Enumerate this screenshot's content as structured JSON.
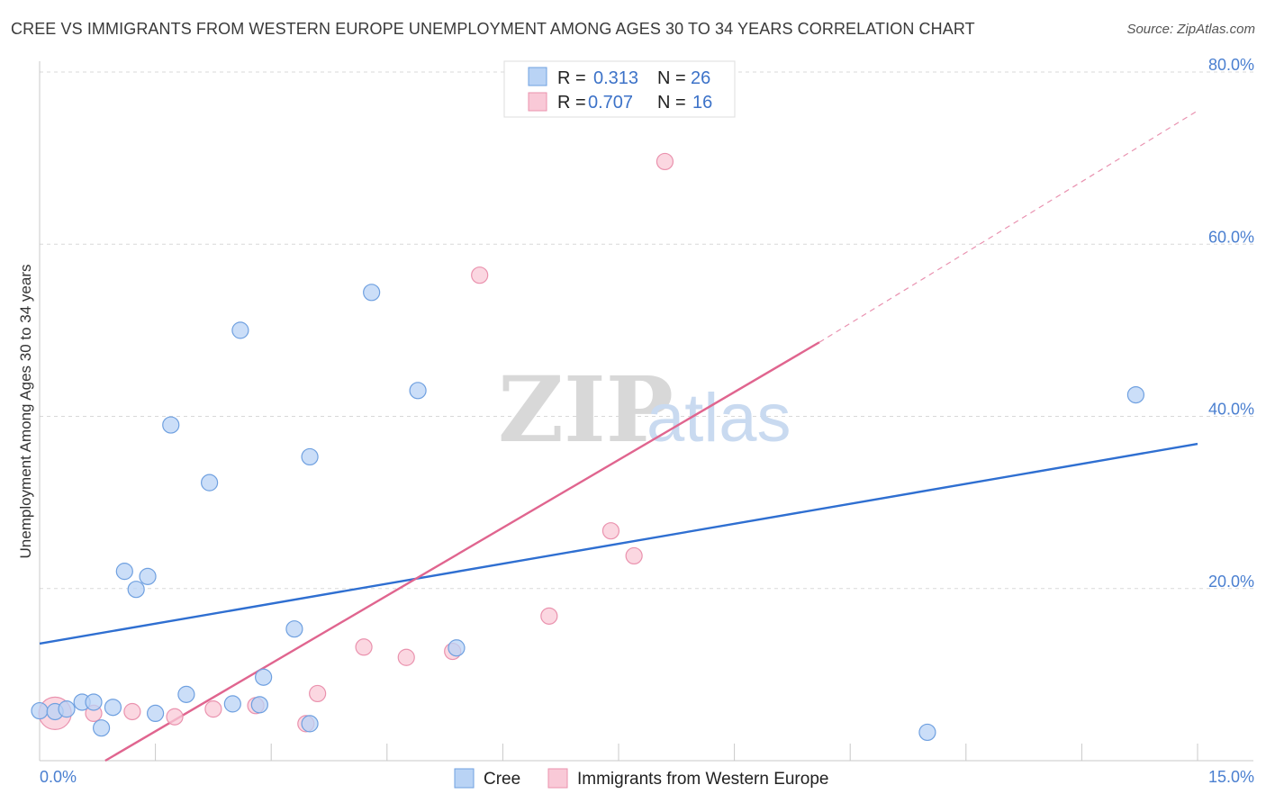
{
  "title": "CREE VS IMMIGRANTS FROM WESTERN EUROPE UNEMPLOYMENT AMONG AGES 30 TO 34 YEARS CORRELATION CHART",
  "source": "Source: ZipAtlas.com",
  "watermark": {
    "zip": "ZIP",
    "atlas": "atlas"
  },
  "legend": {
    "r_label": "R =",
    "n_label": "N =",
    "series": [
      {
        "r": "0.313",
        "n": "26"
      },
      {
        "r": "0.707",
        "n": "16"
      }
    ]
  },
  "colors": {
    "cree_fill": "#b9d3f5",
    "cree_stroke": "#6fa0e0",
    "cree_line": "#2f6fd1",
    "imm_fill": "#f9c9d7",
    "imm_stroke": "#ea92ae",
    "imm_line": "#e0658f",
    "grid": "#d9d9d9",
    "tick_text": "#4a7fd0"
  },
  "chart_data": {
    "type": "scatter",
    "title": "CREE VS IMMIGRANTS FROM WESTERN EUROPE UNEMPLOYMENT AMONG AGES 30 TO 34 YEARS CORRELATION CHART",
    "xlabel": "",
    "ylabel": "Unemployment Among Ages 30 to 34 years",
    "xlim": [
      0,
      15
    ],
    "ylim": [
      0,
      80
    ],
    "x_tick_labels": [
      "0.0%",
      "15.0%"
    ],
    "y_ticks": [
      20,
      40,
      60,
      80
    ],
    "y_tick_labels": [
      "20.0%",
      "40.0%",
      "60.0%",
      "80.0%"
    ],
    "grid": true,
    "legend_position": "top-center",
    "series": [
      {
        "name": "Cree",
        "points": [
          [
            0.0,
            5.8
          ],
          [
            0.2,
            5.7
          ],
          [
            0.35,
            6.0
          ],
          [
            0.55,
            6.8
          ],
          [
            0.7,
            6.8
          ],
          [
            0.8,
            3.8
          ],
          [
            0.95,
            6.2
          ],
          [
            1.1,
            22.0
          ],
          [
            1.25,
            19.9
          ],
          [
            1.4,
            21.4
          ],
          [
            1.5,
            5.5
          ],
          [
            1.7,
            39.0
          ],
          [
            1.9,
            7.7
          ],
          [
            2.2,
            32.3
          ],
          [
            2.5,
            6.6
          ],
          [
            2.6,
            50.0
          ],
          [
            2.85,
            6.5
          ],
          [
            2.9,
            9.7
          ],
          [
            3.3,
            15.3
          ],
          [
            3.5,
            4.3
          ],
          [
            3.5,
            35.3
          ],
          [
            4.3,
            54.4
          ],
          [
            4.9,
            43.0
          ],
          [
            5.4,
            13.1
          ],
          [
            11.5,
            3.3
          ],
          [
            14.2,
            42.5
          ]
        ],
        "trend": {
          "x": [
            0,
            15
          ],
          "y": [
            13.6,
            36.8
          ],
          "style": "solid"
        }
      },
      {
        "name": "Immigrants from Western Europe",
        "points": [
          [
            0.2,
            5.5
          ],
          [
            0.7,
            5.5
          ],
          [
            1.2,
            5.7
          ],
          [
            1.75,
            5.1
          ],
          [
            2.25,
            6.0
          ],
          [
            2.8,
            6.4
          ],
          [
            3.45,
            4.3
          ],
          [
            3.6,
            7.8
          ],
          [
            4.2,
            13.2
          ],
          [
            4.75,
            12.0
          ],
          [
            5.35,
            12.7
          ],
          [
            5.7,
            56.4
          ],
          [
            6.6,
            16.8
          ],
          [
            7.4,
            26.7
          ],
          [
            7.7,
            23.8
          ],
          [
            8.1,
            69.6
          ]
        ],
        "trend": {
          "x": [
            0.85,
            10.1
          ],
          "y": [
            0,
            48.6
          ],
          "style": "solid",
          "extension": {
            "x": [
              10.1,
              15.0
            ],
            "y": [
              48.6,
              75.5
            ],
            "style": "dashed"
          }
        }
      }
    ]
  }
}
